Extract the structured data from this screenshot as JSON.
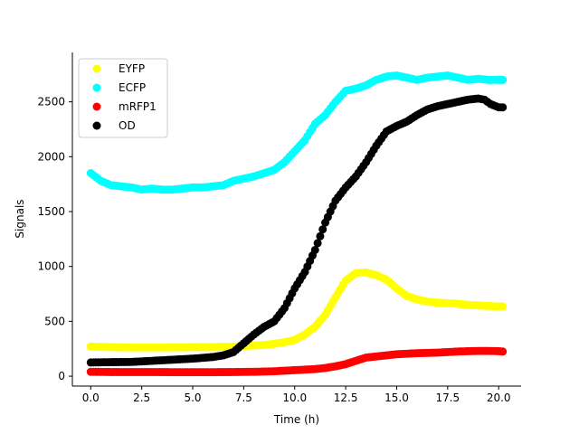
{
  "chart_data": {
    "type": "scatter",
    "title": "",
    "xlabel": "Time (h)",
    "ylabel": "Signals",
    "xlim": [
      -0.9,
      21.1
    ],
    "ylim": [
      -90,
      2950
    ],
    "xticks": [
      "0.0",
      "2.5",
      "5.0",
      "7.5",
      "10.0",
      "12.5",
      "15.0",
      "17.5",
      "20.0"
    ],
    "xtick_values": [
      0,
      2.5,
      5,
      7.5,
      10,
      12.5,
      15,
      17.5,
      20
    ],
    "yticks": [
      "0",
      "500",
      "1000",
      "1500",
      "2000",
      "2500"
    ],
    "ytick_values": [
      0,
      500,
      1000,
      1500,
      2000,
      2500
    ],
    "legend_position": "upper-left",
    "grid": false,
    "series": [
      {
        "name": "EYFP",
        "color": "#ffff00",
        "x": [
          0,
          1,
          2,
          3,
          4,
          5,
          6,
          7,
          7.5,
          8,
          8.5,
          9,
          9.5,
          10,
          10.5,
          11,
          11.5,
          12,
          12.5,
          13,
          13.5,
          14,
          14.5,
          15,
          15.5,
          16,
          16.5,
          17,
          17.5,
          18,
          18.5,
          19,
          19.5,
          20,
          20.2
        ],
        "y": [
          270,
          265,
          262,
          262,
          263,
          265,
          265,
          270,
          275,
          280,
          285,
          295,
          310,
          330,
          380,
          450,
          560,
          720,
          870,
          940,
          945,
          920,
          880,
          800,
          730,
          700,
          680,
          670,
          665,
          660,
          650,
          645,
          640,
          635,
          635
        ]
      },
      {
        "name": "ECFP",
        "color": "#00ffff",
        "x": [
          0,
          0.5,
          1,
          1.5,
          2,
          2.5,
          3,
          3.5,
          4,
          4.5,
          5,
          5.5,
          6,
          6.5,
          7,
          7.5,
          8,
          8.5,
          9,
          9.5,
          10,
          10.5,
          11,
          11.5,
          12,
          12.5,
          13,
          13.5,
          14,
          14.5,
          15,
          15.5,
          16,
          16.5,
          17,
          17.5,
          18,
          18.5,
          19,
          19.5,
          20,
          20.2
        ],
        "y": [
          1850,
          1780,
          1740,
          1730,
          1720,
          1700,
          1710,
          1700,
          1700,
          1710,
          1720,
          1720,
          1730,
          1740,
          1780,
          1800,
          1820,
          1850,
          1880,
          1950,
          2050,
          2150,
          2300,
          2380,
          2500,
          2600,
          2620,
          2650,
          2700,
          2730,
          2740,
          2720,
          2700,
          2720,
          2730,
          2740,
          2720,
          2700,
          2710,
          2700,
          2700,
          2700
        ]
      },
      {
        "name": "mRFP1",
        "color": "#ff0000",
        "x": [
          0,
          1,
          2,
          3,
          4,
          5,
          6,
          7,
          8,
          9,
          10,
          11,
          11.5,
          12,
          12.5,
          13,
          13.5,
          14,
          14.5,
          15,
          15.5,
          16,
          16.5,
          17,
          17.5,
          18,
          18.5,
          19,
          19.5,
          20,
          20.2
        ],
        "y": [
          40,
          38,
          38,
          38,
          37,
          37,
          37,
          38,
          40,
          45,
          55,
          65,
          75,
          90,
          110,
          140,
          170,
          180,
          190,
          200,
          205,
          210,
          212,
          215,
          220,
          225,
          228,
          230,
          230,
          228,
          225
        ]
      },
      {
        "name": "OD",
        "color": "#000000",
        "x": [
          0,
          1,
          2,
          3,
          4,
          5,
          6,
          6.5,
          7,
          7.5,
          8,
          8.5,
          9,
          9.5,
          10,
          10.5,
          11,
          11.5,
          12,
          12.5,
          13,
          13.5,
          14,
          14.5,
          15,
          15.5,
          16,
          16.5,
          17,
          17.5,
          18,
          18.5,
          19,
          19.3,
          19.6,
          20,
          20.2
        ],
        "y": [
          125,
          128,
          130,
          140,
          150,
          160,
          175,
          190,
          220,
          300,
          380,
          450,
          500,
          620,
          800,
          950,
          1150,
          1400,
          1600,
          1720,
          1820,
          1950,
          2100,
          2230,
          2280,
          2320,
          2380,
          2430,
          2460,
          2480,
          2500,
          2520,
          2530,
          2520,
          2480,
          2450,
          2450
        ]
      }
    ]
  }
}
